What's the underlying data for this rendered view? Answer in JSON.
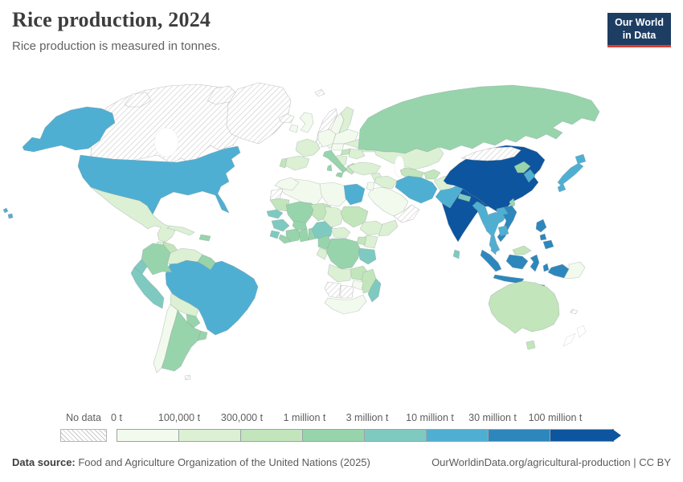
{
  "header": {
    "title": "Rice production, 2024",
    "subtitle": "Rice production is measured in tonnes.",
    "logo": {
      "line1": "Our World",
      "line2": "in Data",
      "bg_color": "#1d3d63",
      "accent_color": "#dc3e32"
    }
  },
  "palette": {
    "c1": "#f2faed",
    "c2": "#dcf0d4",
    "c3": "#c2e5bb",
    "c4": "#97d4ab",
    "c5": "#7ecac0",
    "c6": "#4fafd2",
    "c7": "#2d87bc",
    "c8": "#0d559e",
    "no_data_pattern": "gray-diagonal-hatch"
  },
  "legend": {
    "no_data_label": "No data",
    "bins": [
      {
        "label": "0 t",
        "color": "#f2faed"
      },
      {
        "label": "100,000 t",
        "color": "#dcf0d4"
      },
      {
        "label": "300,000 t",
        "color": "#c2e5bb"
      },
      {
        "label": "1 million t",
        "color": "#97d4ab"
      },
      {
        "label": "3 million t",
        "color": "#7ecac0"
      },
      {
        "label": "10 million t",
        "color": "#4fafd2"
      },
      {
        "label": "30 million t",
        "color": "#2d87bc"
      },
      {
        "label": "100 million t",
        "color": "#0d559e"
      }
    ]
  },
  "footer": {
    "source_label": "Data source:",
    "source_text": " Food and Agriculture Organization of the United Nations (2025)",
    "link_text": "OurWorldinData.org/agricultural-production | CC BY"
  },
  "chart_data": {
    "type": "heatmap",
    "subtype": "choropleth-world-map",
    "title": "Rice production, 2024",
    "subtitle": "Rice production is measured in tonnes.",
    "unit": "tonnes",
    "legend_bins": [
      "0 t",
      "100,000 t",
      "300,000 t",
      "1 million t",
      "3 million t",
      "10 million t",
      "30 million t",
      "100 million t"
    ],
    "countries_by_bin": {
      "100 million t and above": [
        "China",
        "India",
        "Bangladesh"
      ],
      "30-100 million t": [
        "Indonesia",
        "Vietnam",
        "Philippines"
      ],
      "10-30 million t": [
        "United States",
        "Brazil",
        "Pakistan",
        "Myanmar",
        "Thailand",
        "Laos",
        "Cambodia",
        "Malaysia (peninsular)",
        "Japan",
        "South Korea",
        "Iran",
        "Egypt"
      ],
      "3-10 million t": [
        "Peru",
        "Ecuador",
        "Nigeria",
        "Guinea",
        "Senegal",
        "Sierra Leone",
        "Tanzania",
        "Madagascar",
        "Nepal",
        "Sri Lanka"
      ],
      "1-3 million t": [
        "Russia",
        "Italy",
        "North Korea",
        "Taiwan",
        "Colombia",
        "Argentina",
        "Paraguay",
        "Uruguay",
        "Guyana",
        "Dominican Republic",
        "Mali",
        "Cote d'Ivoire",
        "Ghana",
        "Burkina Faso",
        "Benin",
        "Liberia",
        "Cameroon",
        "DR Congo"
      ],
      "300,000-1 million t": [
        "Portugal",
        "Greece",
        "Hungary",
        "Cuba",
        "Mauritania",
        "Niger",
        "Sudan",
        "Uganda",
        "Zambia",
        "Mozambique",
        "Malaysia (Borneo)",
        "Central Asian states",
        "Australia"
      ],
      "100,000-300,000 t": [
        "France",
        "Spain",
        "Romania",
        "Ukraine",
        "Turkey",
        "Iraq",
        "Afghanistan",
        "Kazakhstan",
        "Mexico",
        "Venezuela",
        "Bolivia",
        "Ethiopia",
        "Kenya",
        "Somalia",
        "Chad",
        "Angola",
        "Nicaragua",
        "Panama"
      ],
      "0-100,000 t": [
        "United Kingdom",
        "Ireland",
        "Germany",
        "Poland",
        "Sweden",
        "Finland",
        "Chile",
        "Morocco",
        "Algeria",
        "Libya",
        "Saudi Arabia",
        "South Africa",
        "Zimbabwe",
        "Papua New Guinea"
      ],
      "no_data": [
        "Canada",
        "Greenland",
        "Iceland",
        "Norway",
        "Svalbard",
        "Mongolia",
        "Western Sahara",
        "Namibia",
        "Botswana",
        "Yemen",
        "Oman",
        "New Zealand",
        "Falkland Islands",
        "New Caledonia"
      ]
    }
  }
}
